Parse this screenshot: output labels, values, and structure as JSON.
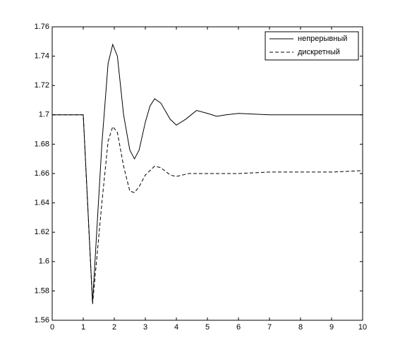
{
  "chart_data": {
    "type": "line",
    "legend": "upper right",
    "xlim": [
      0,
      10
    ],
    "xticks": [
      0,
      1,
      2,
      3,
      4,
      5,
      6,
      7,
      8,
      9,
      10
    ],
    "ylim": [
      1.56,
      1.76
    ],
    "yticks": [
      1.56,
      1.58,
      1.6,
      1.62,
      1.64,
      1.66,
      1.68,
      1.7,
      1.72,
      1.74,
      1.76
    ],
    "series": [
      {
        "name": "непрерывный",
        "color": "#000000",
        "dash": false,
        "x": [
          0,
          1.0,
          1.3,
          1.6,
          1.8,
          1.95,
          2.1,
          2.3,
          2.5,
          2.65,
          2.8,
          3.0,
          3.15,
          3.3,
          3.5,
          3.8,
          4.0,
          4.3,
          4.65,
          5.0,
          5.3,
          5.6,
          6.0,
          7.0,
          10.0
        ],
        "values": [
          1.7,
          1.7,
          1.572,
          1.68,
          1.735,
          1.748,
          1.74,
          1.7,
          1.676,
          1.67,
          1.676,
          1.695,
          1.706,
          1.711,
          1.708,
          1.697,
          1.693,
          1.697,
          1.703,
          1.701,
          1.699,
          1.7,
          1.701,
          1.7,
          1.7
        ]
      },
      {
        "name": "дискретный",
        "color": "#000000",
        "dash": true,
        "x": [
          0,
          1.0,
          1.3,
          1.6,
          1.8,
          1.95,
          2.1,
          2.3,
          2.5,
          2.65,
          2.8,
          3.0,
          3.3,
          3.5,
          3.8,
          4.0,
          4.4,
          5.0,
          6.0,
          7.0,
          8.0,
          9.0,
          10.0
        ],
        "values": [
          1.7,
          1.7,
          1.571,
          1.64,
          1.682,
          1.692,
          1.688,
          1.665,
          1.648,
          1.647,
          1.651,
          1.659,
          1.665,
          1.664,
          1.659,
          1.658,
          1.66,
          1.66,
          1.66,
          1.661,
          1.661,
          1.661,
          1.662
        ]
      }
    ]
  }
}
